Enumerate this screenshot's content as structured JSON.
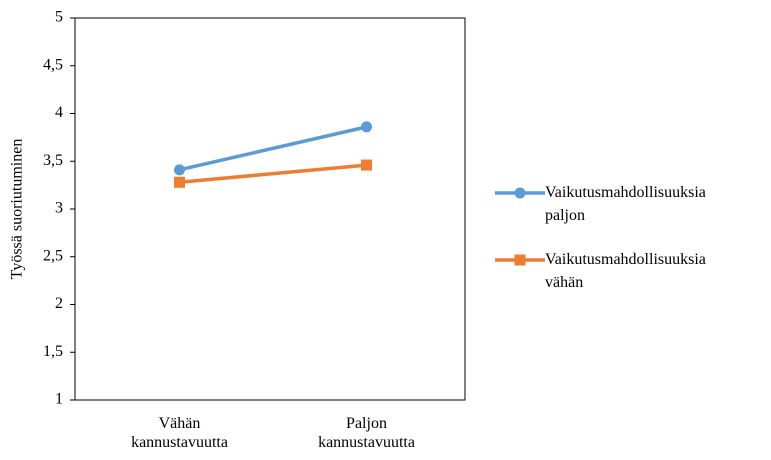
{
  "chart_data": {
    "type": "line",
    "y_label": "Työssä suoriutuminen",
    "categories": [
      "Vähän kannustavuutta",
      "Paljon kannustavuutta"
    ],
    "series": [
      {
        "name": "Vaikutusmahdollisuuksia paljon",
        "color": "#5b9bd5",
        "marker": "circle",
        "values": [
          3.41,
          3.86
        ]
      },
      {
        "name": "Vaikutusmahdollisuuksia vähän",
        "color": "#ed7d31",
        "marker": "square",
        "values": [
          3.28,
          3.46
        ]
      }
    ],
    "ylim": [
      1,
      5
    ],
    "yticks": [
      1,
      {
        "value": 1.5,
        "label": "1,5"
      },
      2,
      {
        "value": 2.5,
        "label": "2,5"
      },
      3,
      {
        "value": 3.5,
        "label": "3,5"
      },
      4,
      {
        "value": 4.5,
        "label": "4,5"
      },
      5
    ],
    "grid": false,
    "legend": "right"
  }
}
